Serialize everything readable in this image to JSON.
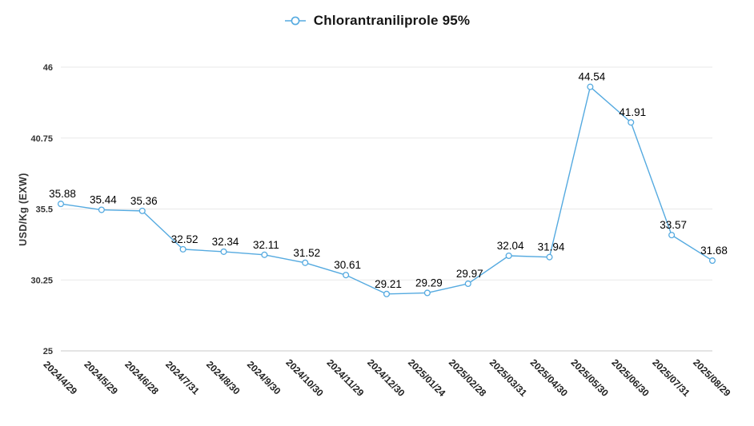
{
  "legend": {
    "label": "Chlorantraniliprole 95%"
  },
  "colors": {
    "line": "#55aae0",
    "marker_fill": "#ffffff",
    "grid": "#e9e9e9",
    "axis_line": "#c9c9c9",
    "axis_text": "#333333",
    "label_text": "#000000"
  },
  "chart_data": {
    "type": "line",
    "title": "Chlorantraniliprole 95%",
    "xlabel": "",
    "ylabel": "USD/Kg (EXW)",
    "legend_position": "top-center",
    "grid": true,
    "marker": "open-circle",
    "ylim": [
      25,
      46
    ],
    "y_ticks": [
      46,
      40.75,
      35.5,
      30.25,
      25
    ],
    "categories": [
      "2024/4/29",
      "2024/5/29",
      "2024/6/28",
      "2024/7/31",
      "2024/8/30",
      "2024/9/30",
      "2024/10/30",
      "2024/11/29",
      "2024/12/30",
      "2025/01/24",
      "2025/02/28",
      "2025/03/31",
      "2025/04/30",
      "2025/05/30",
      "2025/06/30",
      "2025/07/31",
      "2025/08/29"
    ],
    "series": [
      {
        "name": "Chlorantraniliprole 95%",
        "values": [
          35.88,
          35.44,
          35.36,
          32.52,
          32.34,
          32.11,
          31.52,
          30.61,
          29.21,
          29.29,
          29.97,
          32.04,
          31.94,
          44.54,
          41.91,
          33.57,
          31.68
        ]
      }
    ]
  }
}
